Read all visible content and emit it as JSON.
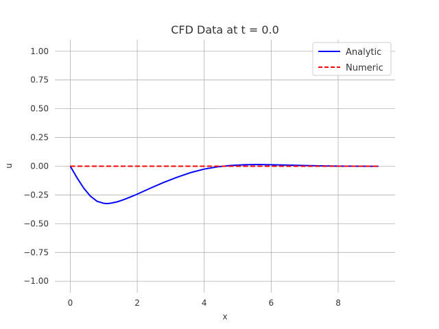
{
  "chart_data": {
    "type": "line",
    "title": "CFD Data at t = 0.0",
    "xlabel": "x",
    "ylabel": "u",
    "xlim": [
      -0.46,
      9.7
    ],
    "ylim": [
      -1.1,
      1.1
    ],
    "x_ticks": [
      0,
      2,
      4,
      6,
      8
    ],
    "y_ticks": [
      1.0,
      0.75,
      0.5,
      0.25,
      0.0,
      -0.25,
      -0.5,
      -0.75,
      -1.0
    ],
    "x_tick_labels": [
      "0",
      "2",
      "4",
      "6",
      "8"
    ],
    "y_tick_labels": [
      "1.00",
      "0.75",
      "0.50",
      "0.25",
      "0.00",
      "−0.25",
      "−0.50",
      "−0.75",
      "−1.00"
    ],
    "grid": true,
    "legend_position": "top-right",
    "series": [
      {
        "name": "Analytic",
        "color": "#0000ff",
        "style": "solid",
        "x": [
          0,
          0.2,
          0.4,
          0.6,
          0.8,
          1.0,
          1.1,
          1.2,
          1.4,
          1.6,
          1.8,
          2.0,
          2.4,
          2.8,
          3.2,
          3.6,
          4.0,
          4.4,
          4.8,
          5.2,
          5.6,
          6.0,
          6.5,
          7.0,
          7.5,
          8.0,
          8.5,
          9.2
        ],
        "y": [
          0,
          -0.1,
          -0.19,
          -0.26,
          -0.305,
          -0.323,
          -0.325,
          -0.322,
          -0.31,
          -0.29,
          -0.267,
          -0.243,
          -0.19,
          -0.14,
          -0.095,
          -0.055,
          -0.025,
          -0.005,
          0.007,
          0.013,
          0.015,
          0.013,
          0.01,
          0.006,
          0.003,
          0.001,
          0.0,
          -0.001
        ]
      },
      {
        "name": "Numeric",
        "color": "#ff0000",
        "style": "dashed",
        "x": [
          0,
          9.2
        ],
        "y": [
          0,
          0
        ]
      }
    ]
  }
}
